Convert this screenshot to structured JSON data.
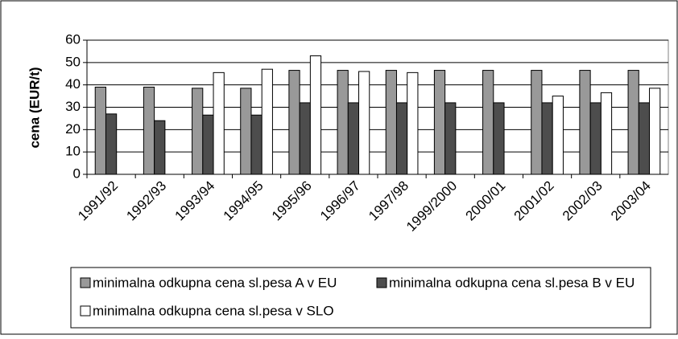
{
  "chart_data": {
    "type": "bar",
    "ylabel": "cena (EUR/t)",
    "categories": [
      "1991/92",
      "1992/93",
      "1993/94",
      "1994/95",
      "1995/96",
      "1996/97",
      "1997/98",
      "1999/2000",
      "2000/01",
      "2001/02",
      "2002/03",
      "2003/04"
    ],
    "series": [
      {
        "name": "minimalna odkupna cena sl.pesa A v EU",
        "color": "#999999",
        "values": [
          39,
          39,
          38.5,
          38.5,
          46.5,
          46.5,
          46.5,
          46.5,
          46.5,
          46.5,
          46.5,
          46.5
        ]
      },
      {
        "name": "minimalna odkupna cena sl.pesa B v EU",
        "color": "#4d4d4d",
        "values": [
          27,
          24,
          26.5,
          26.5,
          32,
          32,
          32,
          32,
          32,
          32,
          32,
          32
        ]
      },
      {
        "name": "minimalna odkupna cena sl.pesa v SLO",
        "color": "#ffffff",
        "values": [
          null,
          null,
          45.5,
          47,
          53,
          46,
          45.5,
          null,
          null,
          35,
          36.5,
          38.5
        ]
      }
    ],
    "ylim": [
      0,
      60
    ],
    "yticks": [
      0,
      10,
      20,
      30,
      40,
      50,
      60
    ],
    "grid": true,
    "legend": "bottom"
  }
}
